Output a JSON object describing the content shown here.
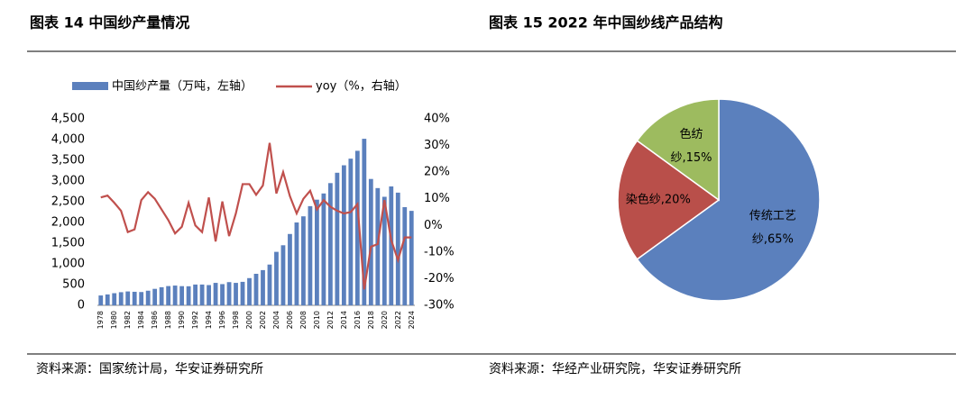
{
  "chart_data": [
    {
      "type": "bar_line",
      "title": "图表 14 中国纱产量情况",
      "source": "资料来源：国家统计局，华安证券研究所",
      "categories": [
        "1978",
        null,
        "1980",
        null,
        "1982",
        null,
        "1984",
        null,
        "1986",
        null,
        "1988",
        null,
        "1990",
        null,
        "1992",
        null,
        "1994",
        null,
        "1996",
        null,
        "1998",
        null,
        "2000",
        null,
        "2002",
        null,
        "2004",
        null,
        "2006",
        null,
        "2008",
        null,
        "2010",
        null,
        "2012",
        null,
        "2014",
        null,
        "2016",
        null,
        "2018",
        null,
        "2020",
        null,
        "2022",
        null,
        "2024"
      ],
      "series": [
        {
          "name": "中国纱产量（万吨，左轴）",
          "type": "bar",
          "color": "#5b80bd",
          "values": [
            238,
            263,
            293,
            317,
            335,
            327,
            321,
            353,
            398,
            437,
            465,
            477,
            463,
            460,
            502,
            502,
            489,
            542,
            512,
            560,
            542,
            567,
            657,
            761,
            850,
            984,
            1291,
            1450,
            1722,
            2000,
            2148,
            2394,
            2550,
            2700,
            2950,
            3200,
            3380,
            3540,
            3730,
            4020,
            3050,
            2830,
            2620,
            2870,
            2720,
            2370,
            2280
          ]
        },
        {
          "name": "yoy（%，右轴）",
          "type": "line",
          "axis": "y2",
          "color": "#c0504d",
          "values": [
            10.5,
            11.2,
            8.5,
            5.5,
            -2.5,
            -1.5,
            9.5,
            12.5,
            10,
            6,
            2,
            -3,
            -0.5,
            8.5,
            0,
            -2.5,
            10.5,
            -6,
            9,
            -4,
            4.5,
            15.5,
            15.5,
            11.5,
            15,
            31,
            12,
            20,
            11,
            4.5,
            10,
            13,
            6,
            9.5,
            7,
            5.5,
            4.5,
            5,
            8,
            -24,
            -8,
            -7,
            9.5,
            -5.5,
            -13,
            -4.5,
            -4.5
          ]
        }
      ],
      "ylim": [
        0,
        4500
      ],
      "yticks": [
        0,
        500,
        {
          "value": 1000,
          "label": "1,000"
        },
        {
          "value": 1500,
          "label": "1,500"
        },
        {
          "value": 2000,
          "label": "2,000"
        },
        {
          "value": 2500,
          "label": "2,500"
        },
        {
          "value": 3000,
          "label": "3,000"
        },
        {
          "value": 3500,
          "label": "3,500"
        },
        {
          "value": 4000,
          "label": "4,000"
        },
        {
          "value": 4500,
          "label": "4,500"
        }
      ],
      "y2lim": [
        -30,
        40
      ],
      "y2ticks": [
        {
          "value": -30,
          "label": "-30%"
        },
        {
          "value": -20,
          "label": "-20%"
        },
        {
          "value": -10,
          "label": "-10%"
        },
        {
          "value": 0,
          "label": "0%"
        },
        {
          "value": 10,
          "label": "10%"
        },
        {
          "value": 20,
          "label": "20%"
        },
        {
          "value": 30,
          "label": "30%"
        },
        {
          "value": 40,
          "label": "40%"
        }
      ],
      "legend": "top"
    },
    {
      "type": "pie",
      "title": "图表 15 2022 年中国纱线产品结构",
      "source": "资料来源：华经产业研究院，华安证券研究所",
      "categories": [
        "传统工艺纱",
        "染色纱",
        "色纺纱"
      ],
      "values": [
        65,
        20,
        15
      ],
      "value_labels": [
        "传统工艺纱,65%",
        "染色纱,20%",
        "色纺纱,15%"
      ],
      "colors": [
        "#5b80bd",
        "#b94f4a",
        "#9dbb5f"
      ]
    }
  ]
}
